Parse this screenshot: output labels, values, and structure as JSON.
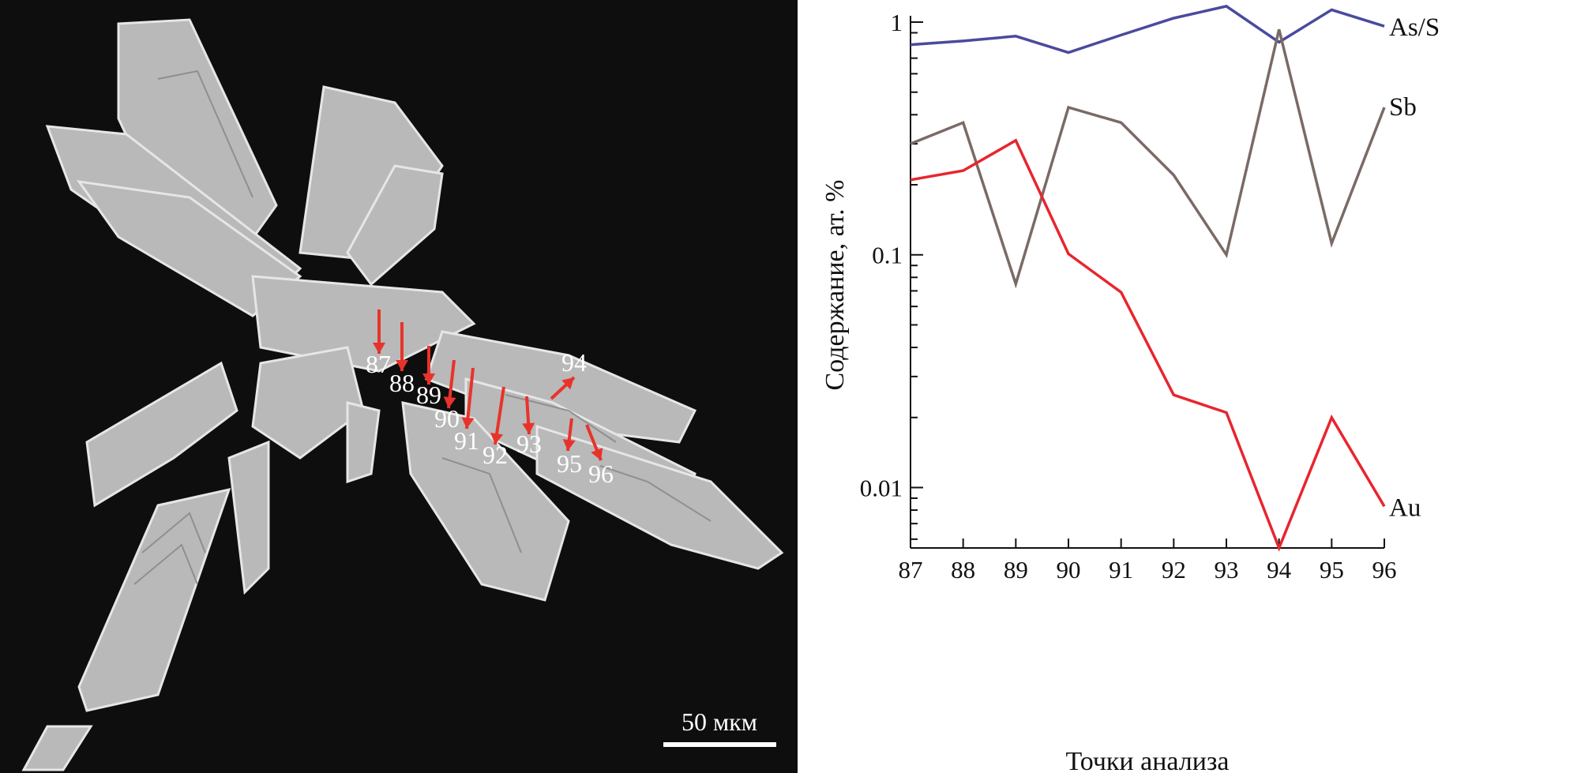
{
  "micrograph": {
    "scale_bar_label": "50 мкм",
    "point_labels": [
      "87",
      "88",
      "89",
      "90",
      "91",
      "92",
      "93",
      "94",
      "95",
      "96"
    ],
    "arrow_color": "#e8332a"
  },
  "chart_data": {
    "type": "line",
    "x": [
      87,
      88,
      89,
      90,
      91,
      92,
      93,
      94,
      95,
      96
    ],
    "xlabel": "Точки анализа",
    "ylabel": "Содержание, ат. %",
    "yscale": "log",
    "ylim": [
      0.0055,
      1
    ],
    "xlim": [
      87,
      96
    ],
    "y_tick_labels": [
      "0.01",
      "0.1",
      "1"
    ],
    "x_tick_labels": [
      "87",
      "88",
      "89",
      "90",
      "91",
      "92",
      "93",
      "94",
      "95",
      "96"
    ],
    "grid": false,
    "legend": "labels at line ends (right)",
    "series": [
      {
        "name": "As/S",
        "color": "#4a4a9e",
        "values": [
          0.8,
          0.83,
          0.87,
          0.74,
          0.88,
          1.04,
          1.17,
          0.82,
          1.13,
          0.96
        ]
      },
      {
        "name": "Sb",
        "color": "#7a6a66",
        "values": [
          0.3,
          0.37,
          0.075,
          0.43,
          0.37,
          0.22,
          0.1,
          0.93,
          0.112,
          0.43
        ]
      },
      {
        "name": "Au",
        "color": "#e8252e",
        "values": [
          0.21,
          0.23,
          0.31,
          0.101,
          0.069,
          0.025,
          0.021,
          0.0055,
          0.02,
          0.0083
        ]
      }
    ]
  }
}
